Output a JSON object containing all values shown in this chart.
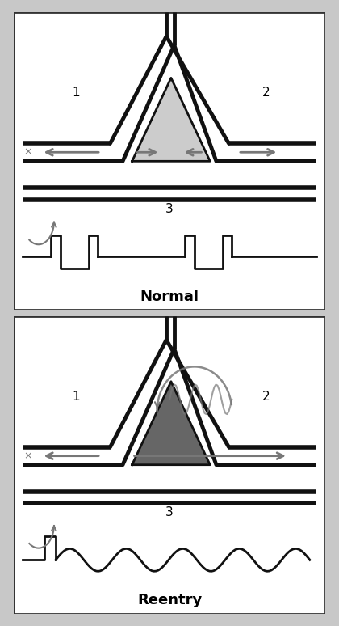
{
  "bg_color": "#c8c8c8",
  "panel_bg": "#ffffff",
  "line_color": "#111111",
  "gray_color": "#777777",
  "light_gray_fill": "#cccccc",
  "med_gray_fill": "#999999",
  "dark_gray_fill": "#666666",
  "normal_label": "Normal",
  "reentry_label": "Reentry",
  "label1": "1",
  "label2": "2",
  "label3": "3",
  "label_fontsize": 11,
  "title_fontsize": 13
}
